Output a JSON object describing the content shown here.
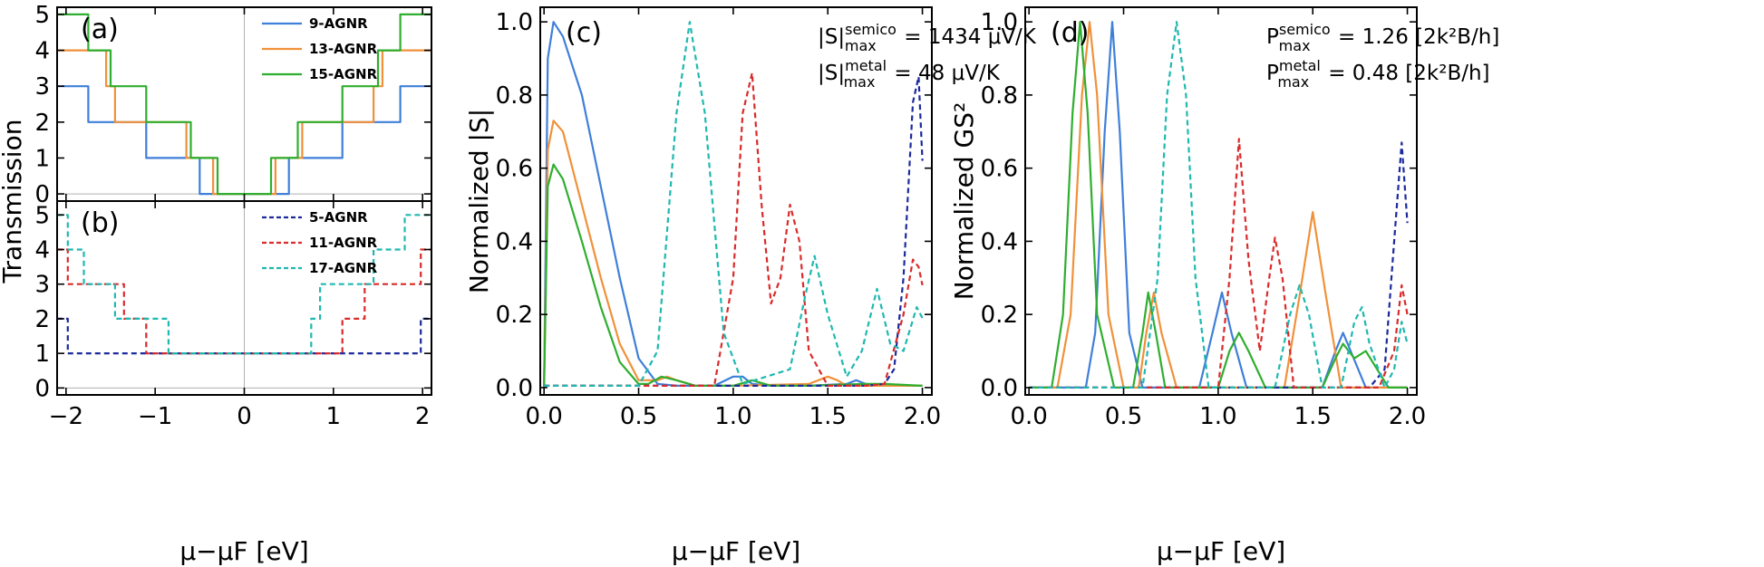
{
  "colors": {
    "9-AGNR": "#3f7fd9",
    "13-AGNR": "#f0913a",
    "15-AGNR": "#2fae2f",
    "5-AGNR": "#1c2a9c",
    "11-AGNR": "#d92b2b",
    "17-AGNR": "#1fb8b0"
  },
  "chart_data": [
    {
      "id": "a",
      "type": "line",
      "panel_label": "(a)",
      "ylabel": "Transmission",
      "xlim": [
        -2.1,
        2.1
      ],
      "ylim": [
        -0.2,
        5.2
      ],
      "xticks": [
        "−2",
        "−1",
        "0",
        "1",
        "2"
      ],
      "yticks": [
        "0",
        "1",
        "2",
        "3",
        "4",
        "5"
      ],
      "legend_position": "top-right",
      "series": [
        {
          "name": "9-AGNR",
          "dashed": false,
          "x": [
            -2.1,
            -1.75,
            -1.75,
            -1.1,
            -1.1,
            -0.5,
            -0.5,
            0.5,
            0.5,
            1.1,
            1.1,
            1.75,
            1.75,
            2.1
          ],
          "y": [
            3,
            3,
            2,
            2,
            1,
            1,
            0,
            0,
            1,
            1,
            2,
            2,
            3,
            3
          ]
        },
        {
          "name": "13-AGNR",
          "dashed": false,
          "x": [
            -2.1,
            -1.55,
            -1.55,
            -1.45,
            -1.45,
            -0.65,
            -0.65,
            -0.35,
            -0.35,
            0.35,
            0.35,
            0.65,
            0.65,
            1.45,
            1.45,
            1.55,
            1.55,
            2.1
          ],
          "y": [
            4,
            4,
            3,
            3,
            2,
            2,
            1,
            1,
            0,
            0,
            1,
            1,
            2,
            2,
            3,
            3,
            4,
            4
          ]
        },
        {
          "name": "15-AGNR",
          "dashed": false,
          "x": [
            -2.1,
            -1.75,
            -1.75,
            -1.5,
            -1.5,
            -1.1,
            -1.1,
            -0.6,
            -0.6,
            -0.3,
            -0.3,
            0.3,
            0.3,
            0.6,
            0.6,
            1.1,
            1.1,
            1.5,
            1.5,
            1.75,
            1.75,
            2.1
          ],
          "y": [
            5,
            5,
            4,
            4,
            3,
            3,
            2,
            2,
            1,
            1,
            0,
            0,
            1,
            1,
            2,
            2,
            3,
            3,
            4,
            4,
            5,
            5
          ]
        }
      ]
    },
    {
      "id": "b",
      "type": "line",
      "panel_label": "(b)",
      "xlabel": "μ−μF [eV]",
      "xlim": [
        -2.1,
        2.1
      ],
      "ylim": [
        -0.2,
        5.4
      ],
      "xticks": [
        "−2",
        "−1",
        "0",
        "1",
        "2"
      ],
      "yticks": [
        "0",
        "1",
        "2",
        "3",
        "4",
        "5"
      ],
      "legend_position": "top-right",
      "series": [
        {
          "name": "5-AGNR",
          "dashed": true,
          "x": [
            -2.1,
            -1.98,
            -1.98,
            1.98,
            1.98,
            2.1
          ],
          "y": [
            2,
            2,
            1,
            1,
            2,
            2
          ]
        },
        {
          "name": "11-AGNR",
          "dashed": true,
          "x": [
            -2.1,
            -1.98,
            -1.98,
            -1.35,
            -1.35,
            -1.1,
            -1.1,
            1.1,
            1.1,
            1.35,
            1.35,
            1.98,
            1.98,
            2.1
          ],
          "y": [
            4,
            4,
            3,
            3,
            2,
            2,
            1,
            1,
            2,
            2,
            3,
            3,
            4,
            4
          ]
        },
        {
          "name": "17-AGNR",
          "dashed": true,
          "x": [
            -2.1,
            -1.98,
            -1.98,
            -1.8,
            -1.8,
            -1.45,
            -1.45,
            -0.85,
            -0.85,
            -0.75,
            -0.75,
            0.75,
            0.75,
            0.85,
            0.85,
            1.45,
            1.45,
            1.8,
            1.8,
            1.98,
            1.98,
            2.1
          ],
          "y": [
            5,
            5,
            4,
            4,
            3,
            3,
            2,
            2,
            1,
            1,
            1,
            1,
            2,
            2,
            3,
            3,
            4,
            4,
            5,
            5,
            5,
            5
          ]
        }
      ]
    },
    {
      "id": "c",
      "type": "line",
      "panel_label": "(c)",
      "xlabel": "μ−μF [eV]",
      "ylabel": "Normalized |S|",
      "xlim": [
        -0.02,
        2.05
      ],
      "ylim": [
        -0.02,
        1.04
      ],
      "xticks": [
        "0.0",
        "0.5",
        "1.0",
        "1.5",
        "2.0"
      ],
      "yticks": [
        "0.0",
        "0.2",
        "0.4",
        "0.6",
        "0.8",
        "1.0"
      ],
      "annotations": [
        {
          "text": "|S|",
          "sup": "semico",
          "sub": "max",
          "value": "= 1434 μV/K"
        },
        {
          "text": "|S|",
          "sup": "metal",
          "sub": "max",
          "value": "= 48 μV/K"
        }
      ],
      "series": [
        {
          "name": "9-AGNR",
          "dashed": false,
          "x": [
            0,
            0.02,
            0.05,
            0.1,
            0.2,
            0.3,
            0.4,
            0.5,
            0.6,
            0.7,
            0.9,
            1.0,
            1.05,
            1.1,
            1.2,
            1.4,
            1.6,
            1.65,
            1.7,
            1.8,
            2.0
          ],
          "y": [
            0.0,
            0.9,
            1.0,
            0.96,
            0.8,
            0.55,
            0.3,
            0.08,
            0.01,
            0.005,
            0.005,
            0.03,
            0.03,
            0.01,
            0.005,
            0.005,
            0.01,
            0.02,
            0.01,
            0.005,
            0.005
          ]
        },
        {
          "name": "13-AGNR",
          "dashed": false,
          "x": [
            0,
            0.02,
            0.05,
            0.1,
            0.2,
            0.3,
            0.4,
            0.5,
            0.6,
            0.65,
            0.7,
            0.8,
            1.0,
            1.4,
            1.5,
            1.55,
            1.6,
            1.8,
            2.0
          ],
          "y": [
            0.0,
            0.65,
            0.73,
            0.7,
            0.5,
            0.3,
            0.12,
            0.02,
            0.02,
            0.03,
            0.02,
            0.005,
            0.005,
            0.01,
            0.03,
            0.02,
            0.005,
            0.005,
            0.005
          ]
        },
        {
          "name": "15-AGNR",
          "dashed": false,
          "x": [
            0,
            0.02,
            0.05,
            0.1,
            0.2,
            0.3,
            0.4,
            0.5,
            0.55,
            0.62,
            0.7,
            0.8,
            1.0,
            1.1,
            1.2,
            1.4,
            1.7,
            1.8,
            2.0
          ],
          "y": [
            0.0,
            0.55,
            0.61,
            0.57,
            0.4,
            0.22,
            0.07,
            0.01,
            0.01,
            0.03,
            0.02,
            0.005,
            0.005,
            0.02,
            0.005,
            0.005,
            0.01,
            0.01,
            0.005
          ]
        },
        {
          "name": "5-AGNR",
          "dashed": true,
          "x": [
            0,
            1.0,
            1.7,
            1.8,
            1.85,
            1.9,
            1.95,
            1.98,
            2.0
          ],
          "y": [
            0.005,
            0.005,
            0.005,
            0.01,
            0.05,
            0.3,
            0.78,
            0.85,
            0.62
          ]
        },
        {
          "name": "11-AGNR",
          "dashed": true,
          "x": [
            0,
            0.9,
            1.0,
            1.05,
            1.1,
            1.15,
            1.2,
            1.25,
            1.3,
            1.35,
            1.4,
            1.5,
            1.7,
            1.8,
            1.9,
            1.95,
            1.98,
            2.0
          ],
          "y": [
            0.005,
            0.005,
            0.3,
            0.75,
            0.86,
            0.5,
            0.23,
            0.3,
            0.5,
            0.4,
            0.1,
            0.005,
            0.005,
            0.01,
            0.2,
            0.35,
            0.33,
            0.28
          ]
        },
        {
          "name": "17-AGNR",
          "dashed": true,
          "x": [
            0,
            0.5,
            0.6,
            0.7,
            0.77,
            0.85,
            0.95,
            1.05,
            1.3,
            1.38,
            1.43,
            1.5,
            1.6,
            1.68,
            1.76,
            1.83,
            1.9,
            1.97,
            2.0
          ],
          "y": [
            0.005,
            0.005,
            0.1,
            0.75,
            1.0,
            0.75,
            0.15,
            0.01,
            0.05,
            0.25,
            0.36,
            0.2,
            0.03,
            0.1,
            0.27,
            0.12,
            0.1,
            0.22,
            0.19
          ]
        }
      ]
    },
    {
      "id": "d",
      "type": "line",
      "panel_label": "(d)",
      "xlabel": "μ−μF [eV]",
      "ylabel": "Normalized GS²",
      "xlim": [
        -0.02,
        2.05
      ],
      "ylim": [
        -0.02,
        1.04
      ],
      "xticks": [
        "0.0",
        "0.5",
        "1.0",
        "1.5",
        "2.0"
      ],
      "yticks": [
        "0.0",
        "0.2",
        "0.4",
        "0.6",
        "0.8",
        "1.0"
      ],
      "annotations": [
        {
          "text": "P",
          "sup": "semico",
          "sub": "max",
          "value": "= 1.26 [2k²B/h]"
        },
        {
          "text": "P",
          "sup": "metal",
          "sub": "max",
          "value": "= 0.48 [2k²B/h]"
        }
      ],
      "series": [
        {
          "name": "9-AGNR",
          "dashed": false,
          "x": [
            0,
            0.3,
            0.35,
            0.4,
            0.44,
            0.48,
            0.53,
            0.6,
            0.9,
            0.97,
            1.02,
            1.07,
            1.15,
            1.55,
            1.62,
            1.66,
            1.7,
            1.78,
            2.0
          ],
          "y": [
            0,
            0,
            0.15,
            0.7,
            1.0,
            0.7,
            0.15,
            0,
            0,
            0.15,
            0.26,
            0.15,
            0,
            0,
            0.1,
            0.15,
            0.1,
            0,
            0
          ]
        },
        {
          "name": "13-AGNR",
          "dashed": false,
          "x": [
            0,
            0.15,
            0.22,
            0.28,
            0.32,
            0.36,
            0.42,
            0.5,
            0.58,
            0.62,
            0.66,
            0.7,
            0.78,
            1.35,
            1.43,
            1.5,
            1.57,
            1.65,
            2.0
          ],
          "y": [
            0,
            0,
            0.2,
            0.8,
            1.0,
            0.8,
            0.2,
            0,
            0,
            0.15,
            0.26,
            0.15,
            0,
            0,
            0.25,
            0.48,
            0.25,
            0,
            0
          ]
        },
        {
          "name": "15-AGNR",
          "dashed": false,
          "x": [
            0,
            0.12,
            0.18,
            0.23,
            0.27,
            0.31,
            0.36,
            0.45,
            0.55,
            0.6,
            0.63,
            0.67,
            0.72,
            1.0,
            1.06,
            1.11,
            1.16,
            1.25,
            1.55,
            1.62,
            1.66,
            1.72,
            1.78,
            1.84,
            1.9,
            2.0
          ],
          "y": [
            0,
            0,
            0.2,
            0.75,
            1.0,
            0.75,
            0.2,
            0,
            0,
            0.15,
            0.26,
            0.15,
            0,
            0,
            0.1,
            0.15,
            0.1,
            0,
            0,
            0.08,
            0.12,
            0.08,
            0.1,
            0.05,
            0,
            0
          ]
        },
        {
          "name": "5-AGNR",
          "dashed": true,
          "x": [
            0,
            1.8,
            1.88,
            1.93,
            1.97,
            2.0
          ],
          "y": [
            0,
            0,
            0.05,
            0.4,
            0.67,
            0.45
          ]
        },
        {
          "name": "11-AGNR",
          "dashed": true,
          "x": [
            0,
            1.0,
            1.06,
            1.11,
            1.16,
            1.22,
            1.27,
            1.3,
            1.34,
            1.4,
            1.85,
            1.93,
            1.97,
            2.0
          ],
          "y": [
            0,
            0,
            0.3,
            0.68,
            0.35,
            0.1,
            0.3,
            0.41,
            0.3,
            0,
            0,
            0.1,
            0.28,
            0.2
          ]
        },
        {
          "name": "17-AGNR",
          "dashed": true,
          "x": [
            0,
            0.6,
            0.68,
            0.73,
            0.78,
            0.83,
            0.88,
            0.95,
            1.3,
            1.38,
            1.43,
            1.48,
            1.55,
            1.65,
            1.72,
            1.76,
            1.8,
            1.88,
            1.93,
            1.97,
            2.0
          ],
          "y": [
            0,
            0,
            0.3,
            0.8,
            1.0,
            0.8,
            0.3,
            0,
            0,
            0.2,
            0.28,
            0.2,
            0,
            0,
            0.18,
            0.22,
            0.12,
            0,
            0.05,
            0.18,
            0.12
          ]
        }
      ]
    }
  ]
}
